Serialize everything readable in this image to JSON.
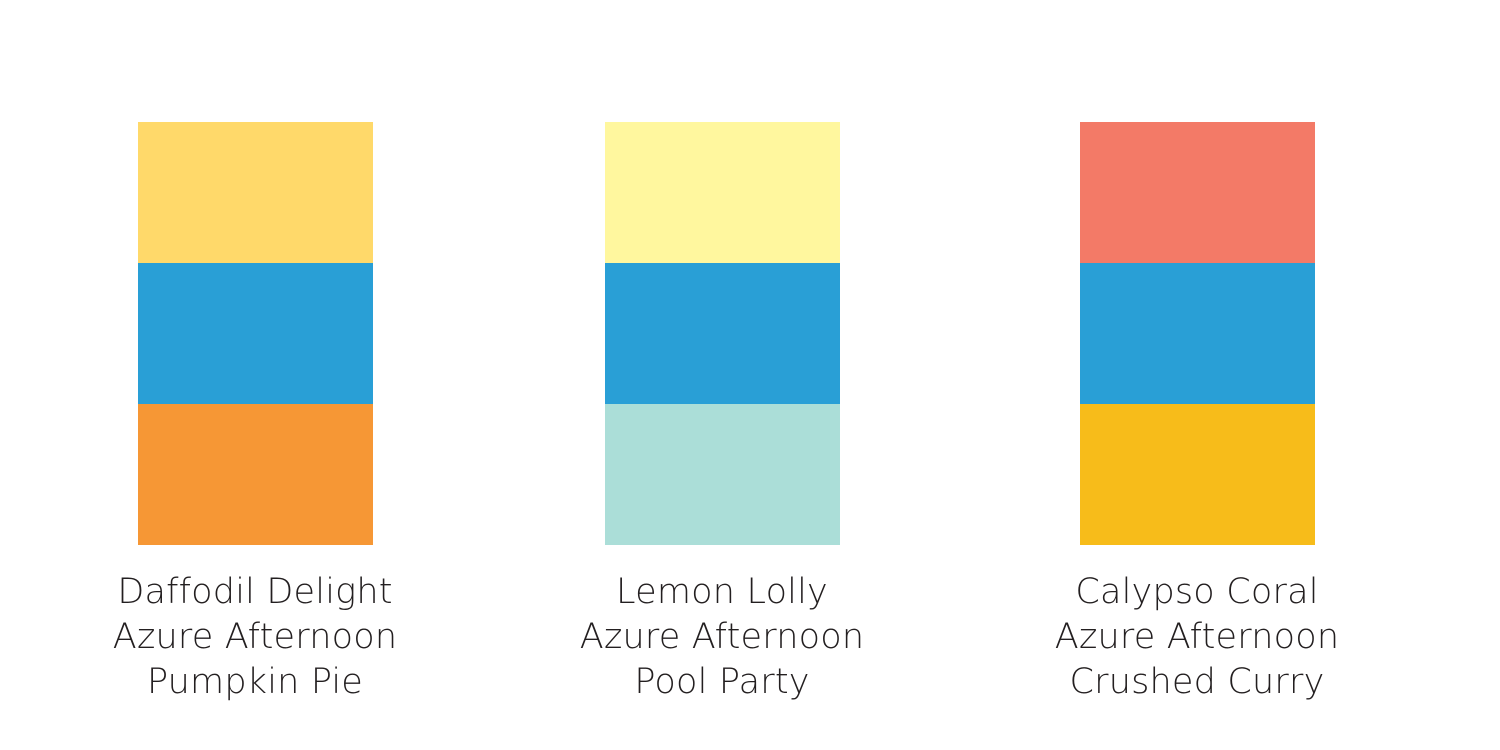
{
  "palettes": [
    {
      "names": [
        "Daffodil Delight",
        "Azure Afternoon",
        "Pumpkin Pie"
      ],
      "colors": [
        "#ffd96a",
        "#299fd6",
        "#f69735"
      ]
    },
    {
      "names": [
        "Lemon Lolly",
        "Azure Afternoon",
        "Pool Party"
      ],
      "colors": [
        "#fff79e",
        "#299fd6",
        "#abded8"
      ]
    },
    {
      "names": [
        "Calypso Coral",
        "Azure Afternoon",
        "Crushed Curry"
      ],
      "colors": [
        "#f37a67",
        "#299fd6",
        "#f7bc1a"
      ]
    }
  ]
}
